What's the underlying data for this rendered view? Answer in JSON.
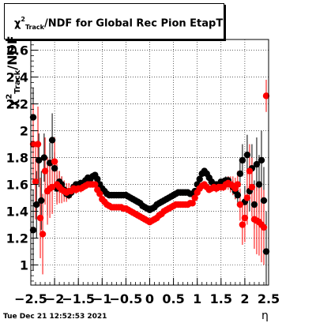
{
  "title": {
    "chi": "χ",
    "sup": "2",
    "sub": "Track",
    "rest": "/NDF for Global Rec Pion EtapT"
  },
  "ylabel": {
    "chi": "χ",
    "sup": "2",
    "sub": "Track",
    "rest": "/NDF"
  },
  "xlabel": "η",
  "timestamp": "Tue Dec 21 12:52:53 2021",
  "chart_data": {
    "type": "scatter",
    "title": "χ2_Track/NDF for Global Rec Pion EtapT",
    "xlabel": "η",
    "ylabel": "χ2_Track/NDF",
    "xlim": [
      -2.5,
      2.5
    ],
    "ylim": [
      0.85,
      2.68
    ],
    "grid": true,
    "xticks": [
      -2.5,
      -2,
      -1.5,
      -1,
      -0.5,
      0,
      0.5,
      1,
      1.5,
      2,
      2.5
    ],
    "xtick_labels": [
      "−2.5",
      "−2",
      "−1.5",
      "−1",
      "−0.5",
      "0",
      "0.5",
      "1",
      "1.5",
      "2",
      "2.5"
    ],
    "yticks": [
      1,
      1.2,
      1.4,
      1.6,
      1.8,
      2,
      2.2,
      2.4,
      2.6
    ],
    "ytick_labels": [
      "1",
      "1.2",
      "1.4",
      "1.6",
      "1.8",
      "2",
      "2.2",
      "2.4",
      "2.6"
    ],
    "series": [
      {
        "color": "#000000",
        "points": [
          [
            -2.45,
            2.1,
            0.22
          ],
          [
            -2.45,
            1.26,
            0.3
          ],
          [
            -2.38,
            1.45,
            0.25
          ],
          [
            -2.33,
            1.78,
            0.2
          ],
          [
            -2.28,
            1.48,
            0.22
          ],
          [
            -2.22,
            1.8,
            0.18
          ],
          [
            -2.15,
            1.55,
            0.18
          ],
          [
            -2.1,
            1.76,
            0.15
          ],
          [
            -2.05,
            1.93,
            0.2
          ],
          [
            -2.0,
            1.72,
            0.12
          ],
          [
            -1.95,
            1.57,
            0.1
          ],
          [
            -1.9,
            1.62,
            0.08
          ],
          [
            -1.85,
            1.6,
            0.06
          ],
          [
            -1.8,
            1.56,
            0.05
          ],
          [
            -1.75,
            1.53,
            0.04
          ],
          [
            -1.7,
            1.52,
            0.03
          ],
          [
            -1.65,
            1.54,
            0.03
          ],
          [
            -1.6,
            1.58,
            0.03
          ],
          [
            -1.55,
            1.6,
            0.02
          ],
          [
            -1.5,
            1.6,
            0.02
          ],
          [
            -1.45,
            1.61,
            0.02
          ],
          [
            -1.4,
            1.61,
            0.02
          ],
          [
            -1.35,
            1.63,
            0.02
          ],
          [
            -1.3,
            1.65,
            0.02
          ],
          [
            -1.25,
            1.64,
            0.02
          ],
          [
            -1.2,
            1.66,
            0.02
          ],
          [
            -1.15,
            1.67,
            0.02
          ],
          [
            -1.1,
            1.64,
            0.02
          ],
          [
            -1.05,
            1.6,
            0.02
          ],
          [
            -1.0,
            1.57,
            0.02
          ],
          [
            -0.95,
            1.55,
            0.01
          ],
          [
            -0.9,
            1.53,
            0.01
          ],
          [
            -0.85,
            1.52,
            0.01
          ],
          [
            -0.8,
            1.52,
            0.01
          ],
          [
            -0.75,
            1.52,
            0.01
          ],
          [
            -0.7,
            1.52,
            0.01
          ],
          [
            -0.65,
            1.52,
            0.01
          ],
          [
            -0.6,
            1.52,
            0.01
          ],
          [
            -0.55,
            1.52,
            0.01
          ],
          [
            -0.5,
            1.52,
            0.01
          ],
          [
            -0.45,
            1.51,
            0.01
          ],
          [
            -0.4,
            1.5,
            0.01
          ],
          [
            -0.35,
            1.49,
            0.01
          ],
          [
            -0.3,
            1.48,
            0.01
          ],
          [
            -0.25,
            1.47,
            0.01
          ],
          [
            -0.2,
            1.46,
            0.01
          ],
          [
            -0.15,
            1.44,
            0.01
          ],
          [
            -0.1,
            1.43,
            0.01
          ],
          [
            -0.05,
            1.42,
            0.01
          ],
          [
            0.0,
            1.41,
            0.01
          ],
          [
            0.05,
            1.42,
            0.01
          ],
          [
            0.1,
            1.43,
            0.01
          ],
          [
            0.15,
            1.45,
            0.01
          ],
          [
            0.2,
            1.46,
            0.01
          ],
          [
            0.25,
            1.47,
            0.01
          ],
          [
            0.3,
            1.48,
            0.01
          ],
          [
            0.35,
            1.49,
            0.01
          ],
          [
            0.4,
            1.5,
            0.01
          ],
          [
            0.45,
            1.51,
            0.01
          ],
          [
            0.5,
            1.52,
            0.01
          ],
          [
            0.55,
            1.53,
            0.01
          ],
          [
            0.6,
            1.54,
            0.01
          ],
          [
            0.65,
            1.54,
            0.01
          ],
          [
            0.7,
            1.54,
            0.01
          ],
          [
            0.75,
            1.54,
            0.01
          ],
          [
            0.8,
            1.54,
            0.01
          ],
          [
            0.85,
            1.53,
            0.01
          ],
          [
            0.9,
            1.53,
            0.01
          ],
          [
            0.95,
            1.55,
            0.02
          ],
          [
            1.0,
            1.6,
            0.02
          ],
          [
            1.05,
            1.64,
            0.02
          ],
          [
            1.1,
            1.68,
            0.02
          ],
          [
            1.15,
            1.7,
            0.02
          ],
          [
            1.2,
            1.68,
            0.02
          ],
          [
            1.25,
            1.65,
            0.02
          ],
          [
            1.3,
            1.62,
            0.02
          ],
          [
            1.35,
            1.6,
            0.02
          ],
          [
            1.4,
            1.6,
            0.02
          ],
          [
            1.45,
            1.6,
            0.02
          ],
          [
            1.5,
            1.62,
            0.02
          ],
          [
            1.55,
            1.62,
            0.03
          ],
          [
            1.6,
            1.63,
            0.03
          ],
          [
            1.65,
            1.63,
            0.03
          ],
          [
            1.7,
            1.6,
            0.04
          ],
          [
            1.75,
            1.58,
            0.05
          ],
          [
            1.8,
            1.55,
            0.06
          ],
          [
            1.85,
            1.52,
            0.08
          ],
          [
            1.9,
            1.68,
            0.1
          ],
          [
            1.95,
            1.78,
            0.12
          ],
          [
            2.0,
            1.47,
            0.12
          ],
          [
            2.05,
            1.82,
            0.15
          ],
          [
            2.1,
            1.55,
            0.15
          ],
          [
            2.15,
            1.72,
            0.18
          ],
          [
            2.2,
            1.45,
            0.18
          ],
          [
            2.25,
            1.75,
            0.2
          ],
          [
            2.3,
            1.6,
            0.22
          ],
          [
            2.35,
            1.78,
            0.22
          ],
          [
            2.4,
            1.48,
            0.25
          ],
          [
            2.45,
            1.1,
            0.3
          ]
        ]
      },
      {
        "color": "#ff0000",
        "points": [
          [
            -2.45,
            1.9,
            0.3
          ],
          [
            -2.4,
            1.62,
            0.28
          ],
          [
            -2.35,
            1.9,
            0.28
          ],
          [
            -2.3,
            1.35,
            0.3
          ],
          [
            -2.25,
            1.23,
            0.3
          ],
          [
            -2.2,
            1.7,
            0.25
          ],
          [
            -2.15,
            1.55,
            0.25
          ],
          [
            -2.1,
            1.57,
            0.22
          ],
          [
            -2.05,
            1.58,
            0.2
          ],
          [
            -2.0,
            1.77,
            0.18
          ],
          [
            -1.95,
            1.6,
            0.15
          ],
          [
            -1.9,
            1.58,
            0.12
          ],
          [
            -1.85,
            1.56,
            0.1
          ],
          [
            -1.8,
            1.55,
            0.08
          ],
          [
            -1.75,
            1.54,
            0.07
          ],
          [
            -1.7,
            1.55,
            0.06
          ],
          [
            -1.65,
            1.55,
            0.05
          ],
          [
            -1.6,
            1.57,
            0.04
          ],
          [
            -1.55,
            1.56,
            0.03
          ],
          [
            -1.5,
            1.57,
            0.03
          ],
          [
            -1.45,
            1.57,
            0.03
          ],
          [
            -1.4,
            1.58,
            0.03
          ],
          [
            -1.35,
            1.59,
            0.02
          ],
          [
            -1.3,
            1.6,
            0.02
          ],
          [
            -1.25,
            1.6,
            0.02
          ],
          [
            -1.2,
            1.6,
            0.02
          ],
          [
            -1.15,
            1.6,
            0.02
          ],
          [
            -1.1,
            1.56,
            0.02
          ],
          [
            -1.05,
            1.53,
            0.02
          ],
          [
            -1.0,
            1.49,
            0.02
          ],
          [
            -0.95,
            1.47,
            0.01
          ],
          [
            -0.9,
            1.45,
            0.01
          ],
          [
            -0.85,
            1.44,
            0.01
          ],
          [
            -0.8,
            1.43,
            0.01
          ],
          [
            -0.75,
            1.43,
            0.01
          ],
          [
            -0.7,
            1.43,
            0.01
          ],
          [
            -0.65,
            1.43,
            0.01
          ],
          [
            -0.6,
            1.43,
            0.01
          ],
          [
            -0.55,
            1.42,
            0.01
          ],
          [
            -0.5,
            1.42,
            0.01
          ],
          [
            -0.45,
            1.41,
            0.01
          ],
          [
            -0.4,
            1.4,
            0.01
          ],
          [
            -0.35,
            1.39,
            0.01
          ],
          [
            -0.3,
            1.38,
            0.01
          ],
          [
            -0.25,
            1.37,
            0.01
          ],
          [
            -0.2,
            1.36,
            0.01
          ],
          [
            -0.15,
            1.35,
            0.01
          ],
          [
            -0.1,
            1.34,
            0.01
          ],
          [
            -0.05,
            1.33,
            0.01
          ],
          [
            0.0,
            1.32,
            0.01
          ],
          [
            0.05,
            1.33,
            0.01
          ],
          [
            0.1,
            1.34,
            0.01
          ],
          [
            0.15,
            1.35,
            0.01
          ],
          [
            0.2,
            1.37,
            0.01
          ],
          [
            0.25,
            1.38,
            0.01
          ],
          [
            0.3,
            1.4,
            0.01
          ],
          [
            0.35,
            1.41,
            0.01
          ],
          [
            0.4,
            1.42,
            0.01
          ],
          [
            0.45,
            1.43,
            0.01
          ],
          [
            0.5,
            1.44,
            0.01
          ],
          [
            0.55,
            1.45,
            0.01
          ],
          [
            0.6,
            1.45,
            0.01
          ],
          [
            0.65,
            1.45,
            0.01
          ],
          [
            0.7,
            1.45,
            0.01
          ],
          [
            0.75,
            1.45,
            0.01
          ],
          [
            0.8,
            1.45,
            0.01
          ],
          [
            0.85,
            1.46,
            0.01
          ],
          [
            0.9,
            1.46,
            0.01
          ],
          [
            0.95,
            1.5,
            0.02
          ],
          [
            1.0,
            1.54,
            0.02
          ],
          [
            1.05,
            1.57,
            0.02
          ],
          [
            1.1,
            1.59,
            0.02
          ],
          [
            1.15,
            1.6,
            0.02
          ],
          [
            1.2,
            1.58,
            0.02
          ],
          [
            1.25,
            1.56,
            0.02
          ],
          [
            1.3,
            1.57,
            0.02
          ],
          [
            1.35,
            1.58,
            0.02
          ],
          [
            1.4,
            1.57,
            0.03
          ],
          [
            1.45,
            1.58,
            0.03
          ],
          [
            1.5,
            1.58,
            0.03
          ],
          [
            1.55,
            1.58,
            0.03
          ],
          [
            1.6,
            1.6,
            0.04
          ],
          [
            1.65,
            1.61,
            0.05
          ],
          [
            1.7,
            1.6,
            0.06
          ],
          [
            1.75,
            1.59,
            0.07
          ],
          [
            1.8,
            1.57,
            0.08
          ],
          [
            1.85,
            1.6,
            0.1
          ],
          [
            1.9,
            1.45,
            0.12
          ],
          [
            1.95,
            1.3,
            0.15
          ],
          [
            2.0,
            1.35,
            0.18
          ],
          [
            2.05,
            1.5,
            0.2
          ],
          [
            2.1,
            1.7,
            0.2
          ],
          [
            2.15,
            1.58,
            0.22
          ],
          [
            2.2,
            1.34,
            0.22
          ],
          [
            2.25,
            1.33,
            0.25
          ],
          [
            2.3,
            1.32,
            0.25
          ],
          [
            2.35,
            1.3,
            0.28
          ],
          [
            2.4,
            1.28,
            0.28
          ],
          [
            2.45,
            2.26,
            0.12
          ]
        ]
      }
    ]
  }
}
